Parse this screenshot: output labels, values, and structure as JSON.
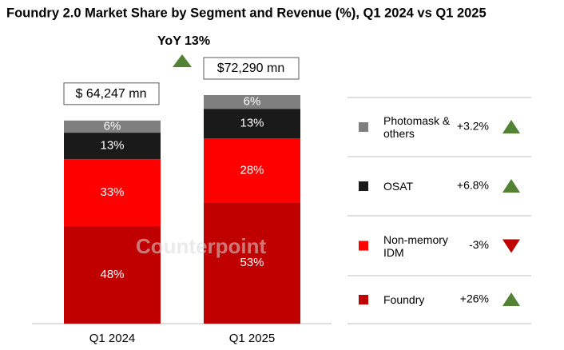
{
  "chart_data": {
    "type": "stacked_bar",
    "title": "Foundry 2.0 Market Share by Segment and Revenue (%), Q1 2024 vs Q1 2025",
    "categories": [
      "Q1 2024",
      "Q1 2025"
    ],
    "revenue": [
      64247,
      72290
    ],
    "revenue_labels": [
      "$ 64,247 mn",
      "$72,290 mn"
    ],
    "annotation": "YoY 13%",
    "watermark": "Counterpoint",
    "series": [
      {
        "name": "Foundry",
        "color": "#c00000",
        "values": [
          48,
          53
        ],
        "value_labels": [
          "48%",
          "53%"
        ],
        "change": 26,
        "change_label": "+26%"
      },
      {
        "name": "Non-memory IDM",
        "color": "#ff0000",
        "values": [
          33,
          28
        ],
        "value_labels": [
          "33%",
          "28%"
        ],
        "change": -3,
        "change_label": "-3%"
      },
      {
        "name": "OSAT",
        "color": "#1a1a1a",
        "values": [
          13,
          13
        ],
        "value_labels": [
          "13%",
          "13%"
        ],
        "change": 6.8,
        "change_label": "+6.8%"
      },
      {
        "name": "Photomask & others",
        "color": "#7f7f7f",
        "values": [
          6,
          6
        ],
        "value_labels": [
          "6%",
          "6%"
        ],
        "change": 3.2,
        "change_label": "+3.2%"
      }
    ]
  }
}
